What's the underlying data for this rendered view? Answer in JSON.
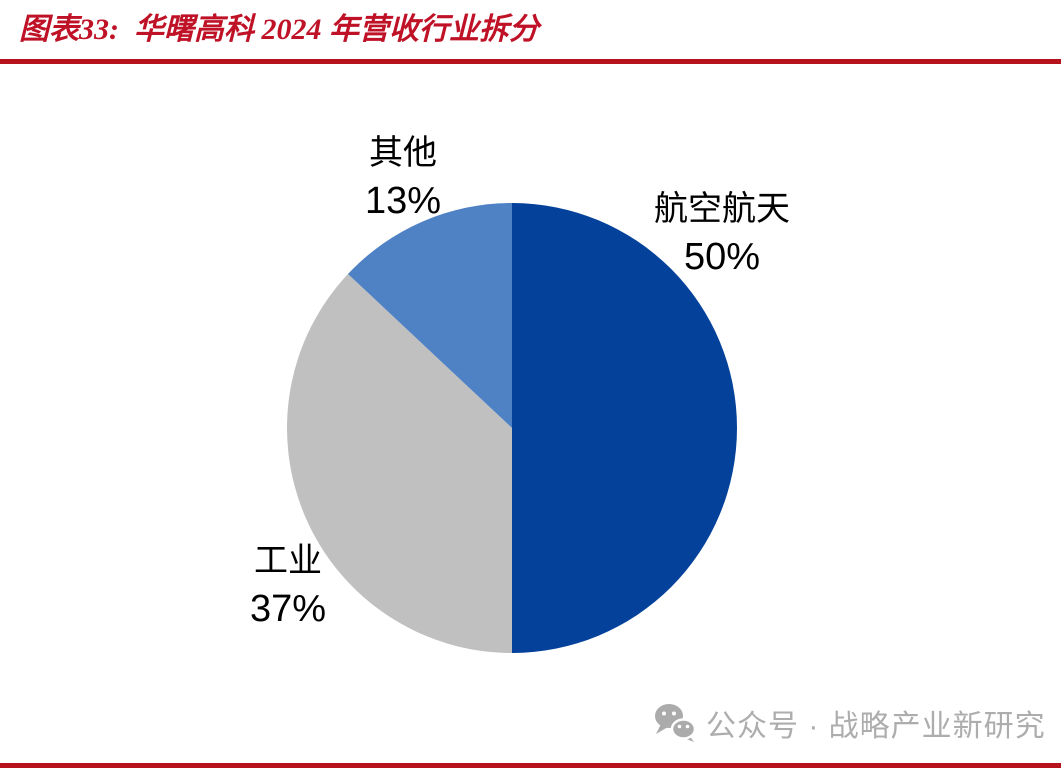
{
  "header": {
    "title": "图表33:  华曙高科 2024 年营收行业拆分"
  },
  "chart_data": {
    "type": "pie",
    "title": "华曙高科 2024 年营收行业拆分",
    "start_angle_deg": 0,
    "direction": "clockwise",
    "legend_position": "none",
    "slices": [
      {
        "label": "航空航天",
        "value": 50,
        "pct_label": "50%",
        "color": "#03419A"
      },
      {
        "label": "工业",
        "value": 37,
        "pct_label": "37%",
        "color": "#C0C0C0"
      },
      {
        "label": "其他",
        "value": 13,
        "pct_label": "13%",
        "color": "#4F81C5"
      }
    ]
  },
  "watermark": {
    "text": "公众号 · 战略产业新研究"
  },
  "colors": {
    "title_red": "#BF1227",
    "rule_red": "#B5121B",
    "watermark_gray": "#ADADAD",
    "label_text": "#000000"
  }
}
